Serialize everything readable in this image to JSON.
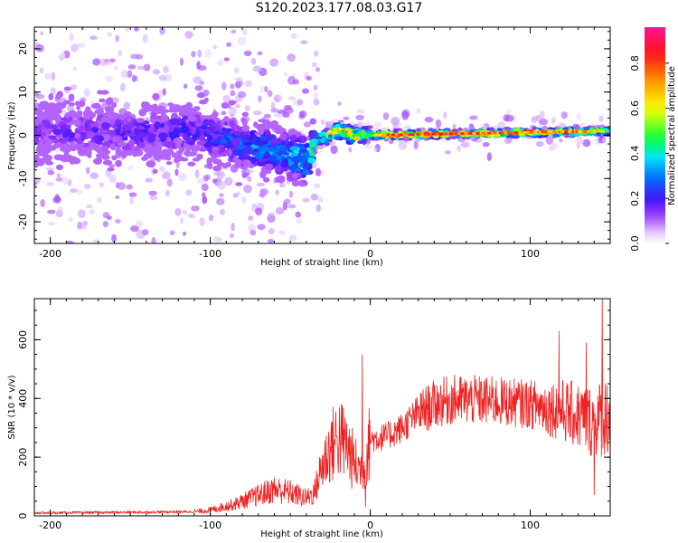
{
  "title": "S120.2023.177.08.03.G17",
  "chart_data": [
    {
      "type": "heatmap",
      "xlabel": "Height of straight line (km)",
      "ylabel": "Frequency (Hz)",
      "xlim": [
        -210,
        150
      ],
      "ylim": [
        -25,
        25
      ],
      "xticks": [
        -200,
        -100,
        0,
        100
      ],
      "yticks": [
        -20,
        -10,
        0,
        10,
        20
      ],
      "colorbar": {
        "label": "Normalized spectral amplitude",
        "range": [
          0.0,
          0.96
        ],
        "ticks": [
          0.0,
          0.2,
          0.4,
          0.6,
          0.8
        ],
        "tick_labels": [
          "0.0",
          "0.2",
          "0.4",
          "0.6",
          "0.8"
        ],
        "colors": [
          "#ffffff",
          "#9a1aff",
          "#1a1aff",
          "#00e5ff",
          "#00ff3c",
          "#ffff00",
          "#ff9900",
          "#ff1a1a",
          "#ff1493"
        ]
      },
      "ridge_center_hz": [
        {
          "x": -210,
          "y": 1
        },
        {
          "x": -150,
          "y": 0.5
        },
        {
          "x": -110,
          "y": 1
        },
        {
          "x": -90,
          "y": -1
        },
        {
          "x": -70,
          "y": -3
        },
        {
          "x": -55,
          "y": -4
        },
        {
          "x": -40,
          "y": -6
        },
        {
          "x": -33,
          "y": -1
        },
        {
          "x": -20,
          "y": 1
        },
        {
          "x": -10,
          "y": 0
        },
        {
          "x": 0,
          "y": 0
        },
        {
          "x": 150,
          "y": 1
        }
      ],
      "peak_amplitude_by_height": [
        {
          "x": -210,
          "v": 0.15
        },
        {
          "x": -110,
          "v": 0.2
        },
        {
          "x": -60,
          "v": 0.35
        },
        {
          "x": -30,
          "v": 0.45
        },
        {
          "x": -15,
          "v": 0.85
        },
        {
          "x": 0,
          "v": 0.45
        },
        {
          "x": 10,
          "v": 0.9
        },
        {
          "x": 80,
          "v": 0.85
        },
        {
          "x": 130,
          "v": 0.8
        },
        {
          "x": 150,
          "v": 0.55
        }
      ]
    },
    {
      "type": "line",
      "xlabel": "Height of straight line (km)",
      "ylabel": "SNR (10 * v/v)",
      "xlim": [
        -210,
        150
      ],
      "ylim": [
        0,
        740
      ],
      "xticks": [
        -200,
        -100,
        0,
        100
      ],
      "yticks": [
        0,
        200,
        400,
        600
      ],
      "line_color": "#ee2222",
      "series": [
        {
          "points": [
            {
              "x": -210,
              "y": 10
            },
            {
              "x": -150,
              "y": 12
            },
            {
              "x": -110,
              "y": 14
            },
            {
              "x": -100,
              "y": 20
            },
            {
              "x": -85,
              "y": 40
            },
            {
              "x": -70,
              "y": 70
            },
            {
              "x": -60,
              "y": 90
            },
            {
              "x": -50,
              "y": 80
            },
            {
              "x": -40,
              "y": 60
            },
            {
              "x": -35,
              "y": 80
            },
            {
              "x": -30,
              "y": 170
            },
            {
              "x": -25,
              "y": 230
            },
            {
              "x": -20,
              "y": 270
            },
            {
              "x": -15,
              "y": 240
            },
            {
              "x": -10,
              "y": 180
            },
            {
              "x": -5,
              "y": 150
            },
            {
              "x": 0,
              "y": 260
            },
            {
              "x": 10,
              "y": 270
            },
            {
              "x": 20,
              "y": 300
            },
            {
              "x": 30,
              "y": 350
            },
            {
              "x": 40,
              "y": 380
            },
            {
              "x": 50,
              "y": 395
            },
            {
              "x": 60,
              "y": 395
            },
            {
              "x": 80,
              "y": 390
            },
            {
              "x": 100,
              "y": 380
            },
            {
              "x": 120,
              "y": 360
            },
            {
              "x": 140,
              "y": 320
            },
            {
              "x": 150,
              "y": 350
            }
          ],
          "spikes": [
            {
              "x": -5,
              "y": 550
            },
            {
              "x": -3,
              "y": 30
            },
            {
              "x": 118,
              "y": 630
            },
            {
              "x": 135,
              "y": 590
            },
            {
              "x": 145,
              "y": 740
            },
            {
              "x": 140,
              "y": 70
            }
          ]
        }
      ]
    }
  ]
}
